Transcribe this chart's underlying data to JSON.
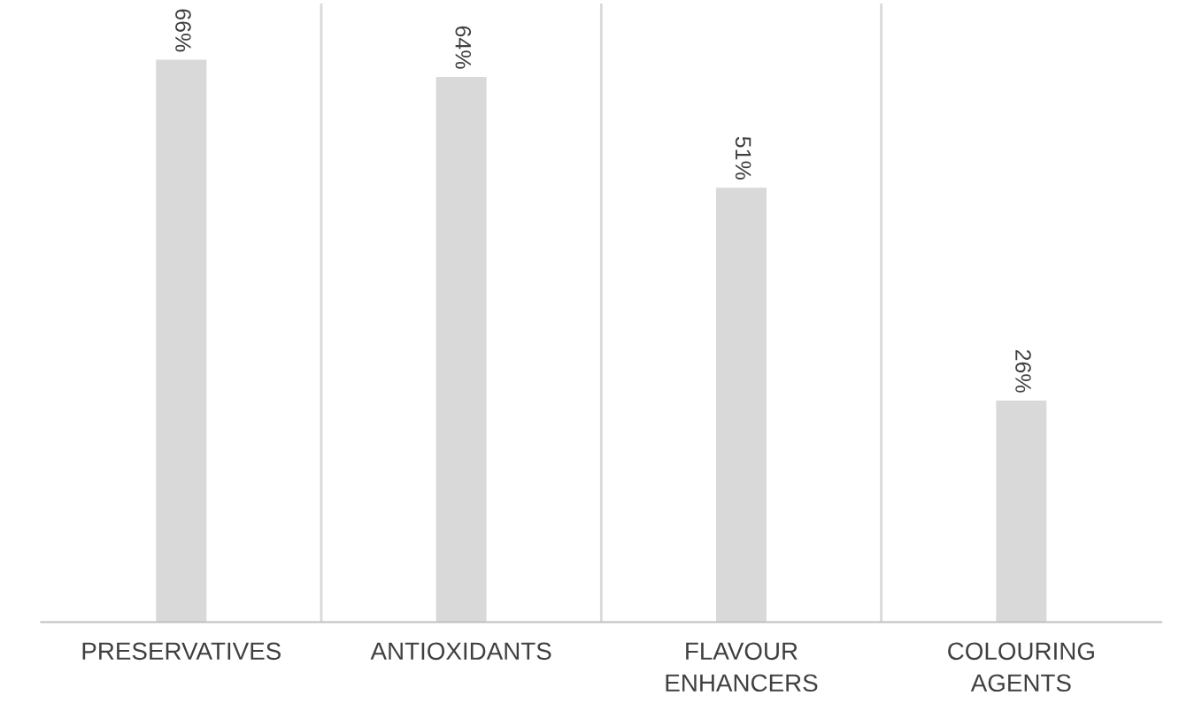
{
  "chart_data": {
    "type": "bar",
    "categories": [
      "PRESERVATIVES",
      "ANTIOXIDANTS",
      "FLAVOUR ENHANCERS",
      "COLOURING AGENTS"
    ],
    "values": [
      66,
      64,
      51,
      26
    ],
    "color": "#d9d9d9",
    "value_labels": [
      "66%",
      "64%",
      "51%",
      "26%"
    ],
    "grid": "x",
    "legend": false
  }
}
